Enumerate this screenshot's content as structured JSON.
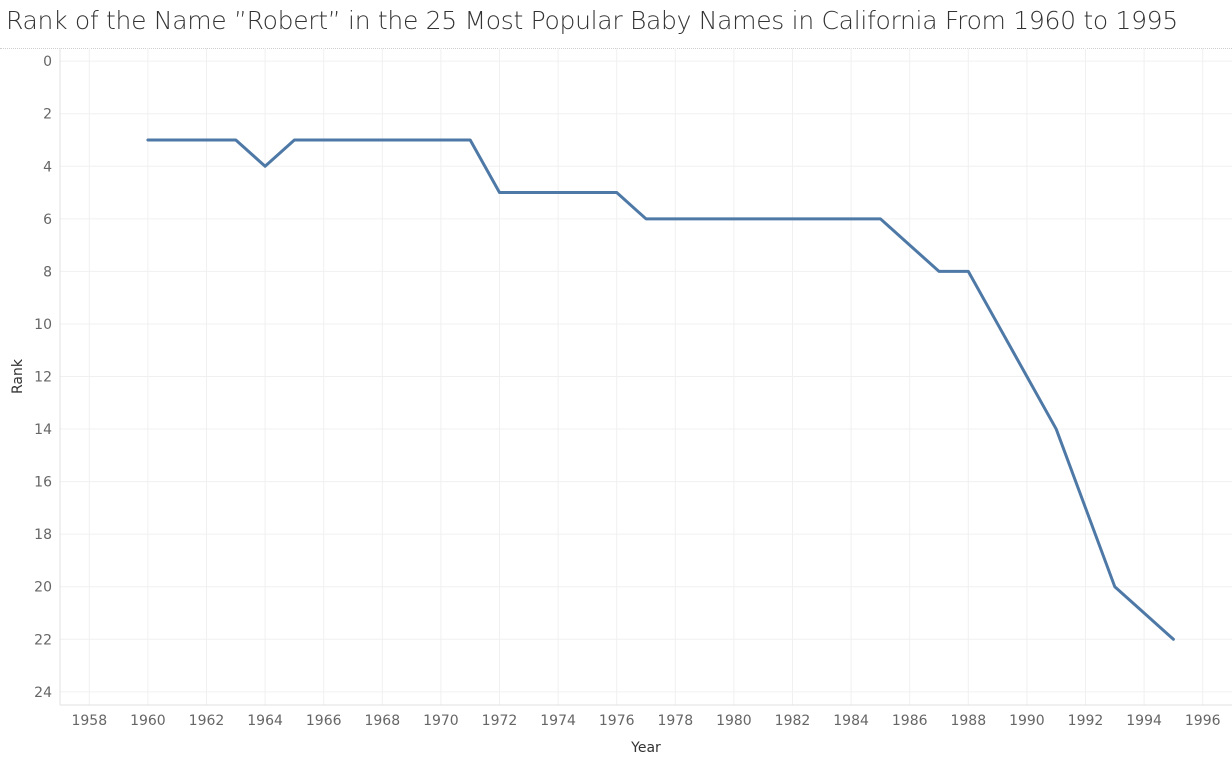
{
  "colors": {
    "line": "#4e79a7",
    "grid": "#f0f0f0",
    "tick_text": "#666666",
    "title_text": "#333333"
  },
  "chart_data": {
    "type": "line",
    "title": "Rank of the Name ”Robert” in the 25 Most Popular Baby Names in California From 1960 to 1995",
    "xlabel": "Year",
    "ylabel": "Rank",
    "xlim": [
      1957,
      1997
    ],
    "ylim": [
      24.5,
      -0.5
    ],
    "y_reversed": true,
    "grid": true,
    "x_ticks": [
      1958,
      1960,
      1962,
      1964,
      1966,
      1968,
      1970,
      1972,
      1974,
      1976,
      1978,
      1980,
      1982,
      1984,
      1986,
      1988,
      1990,
      1992,
      1994,
      1996
    ],
    "y_ticks": [
      0,
      2,
      4,
      6,
      8,
      10,
      12,
      14,
      16,
      18,
      20,
      22,
      24
    ],
    "series": [
      {
        "x": [
          1960,
          1961,
          1962,
          1963,
          1964,
          1965,
          1966,
          1967,
          1968,
          1969,
          1970,
          1971,
          1972,
          1973,
          1974,
          1975,
          1976,
          1977,
          1978,
          1979,
          1980,
          1981,
          1982,
          1983,
          1984,
          1985,
          1986,
          1987,
          1988,
          1989,
          1990,
          1991,
          1992,
          1993,
          1994,
          1995
        ],
        "y": [
          3,
          3,
          3,
          3,
          4,
          3,
          3,
          3,
          3,
          3,
          3,
          3,
          5,
          5,
          5,
          5,
          5,
          6,
          6,
          6,
          6,
          6,
          6,
          6,
          6,
          6,
          7,
          8,
          8,
          10,
          12,
          14,
          17,
          20,
          21,
          22
        ]
      }
    ]
  }
}
